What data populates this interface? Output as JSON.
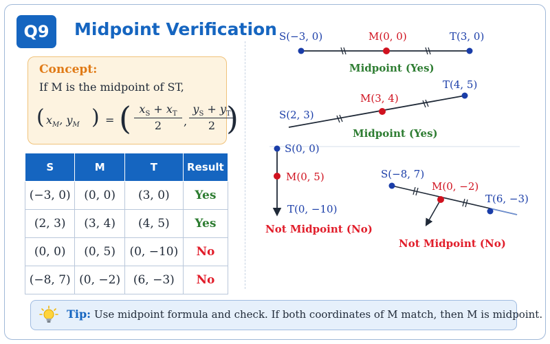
{
  "header": {
    "badge": "Q9",
    "title": "Midpoint Verification"
  },
  "concept": {
    "title": "Concept:",
    "text": "If M is the midpoint of ST,",
    "formula": {
      "lhs": "(x_M, y_M) =",
      "num1": "x_S + x_T",
      "den1": "2",
      "num2": "y_S + y_T",
      "den2": "2"
    }
  },
  "table": {
    "headers": [
      "S",
      "M",
      "T",
      "Result"
    ],
    "rows": [
      [
        "(−3, 0)",
        "(0, 0)",
        "(3, 0)",
        "Yes"
      ],
      [
        "(2, 3)",
        "(3, 4)",
        "(4, 5)",
        "Yes"
      ],
      [
        "(0, 0)",
        "(0, 5)",
        "(0, −10)",
        "No"
      ],
      [
        "(−8, 7)",
        "(0, −2)",
        "(6, −3)",
        "No"
      ]
    ]
  },
  "diagrams": {
    "d1": {
      "s": "S(−3, 0)",
      "m": "M(0, 0)",
      "t": "T(3, 0)",
      "result": "Midpoint (Yes)"
    },
    "d2": {
      "s": "S(2, 3)",
      "m": "M(3, 4)",
      "t": "T(4, 5)",
      "result": "Midpoint (Yes)"
    },
    "d3": {
      "s": "S(0, 0)",
      "m": "M(0, 5)",
      "t": "T(0, −10)",
      "result": "Not Midpoint (No)"
    },
    "d4": {
      "s": "S(−8, 7)",
      "m": "M(0, −2)",
      "t": "T(6, −3)",
      "result": "Not Midpoint (No)"
    }
  },
  "tip": {
    "label": "Tip:",
    "text": "Use midpoint formula and check. If both coordinates of M match, then M is midpoint.",
    "icon": "lightbulb-icon"
  },
  "colors": {
    "accent": "#1565c0",
    "yes": "#2e7d32",
    "no": "#e11d2a",
    "point_blue": "#1a3da8",
    "point_red": "#d0121f"
  }
}
